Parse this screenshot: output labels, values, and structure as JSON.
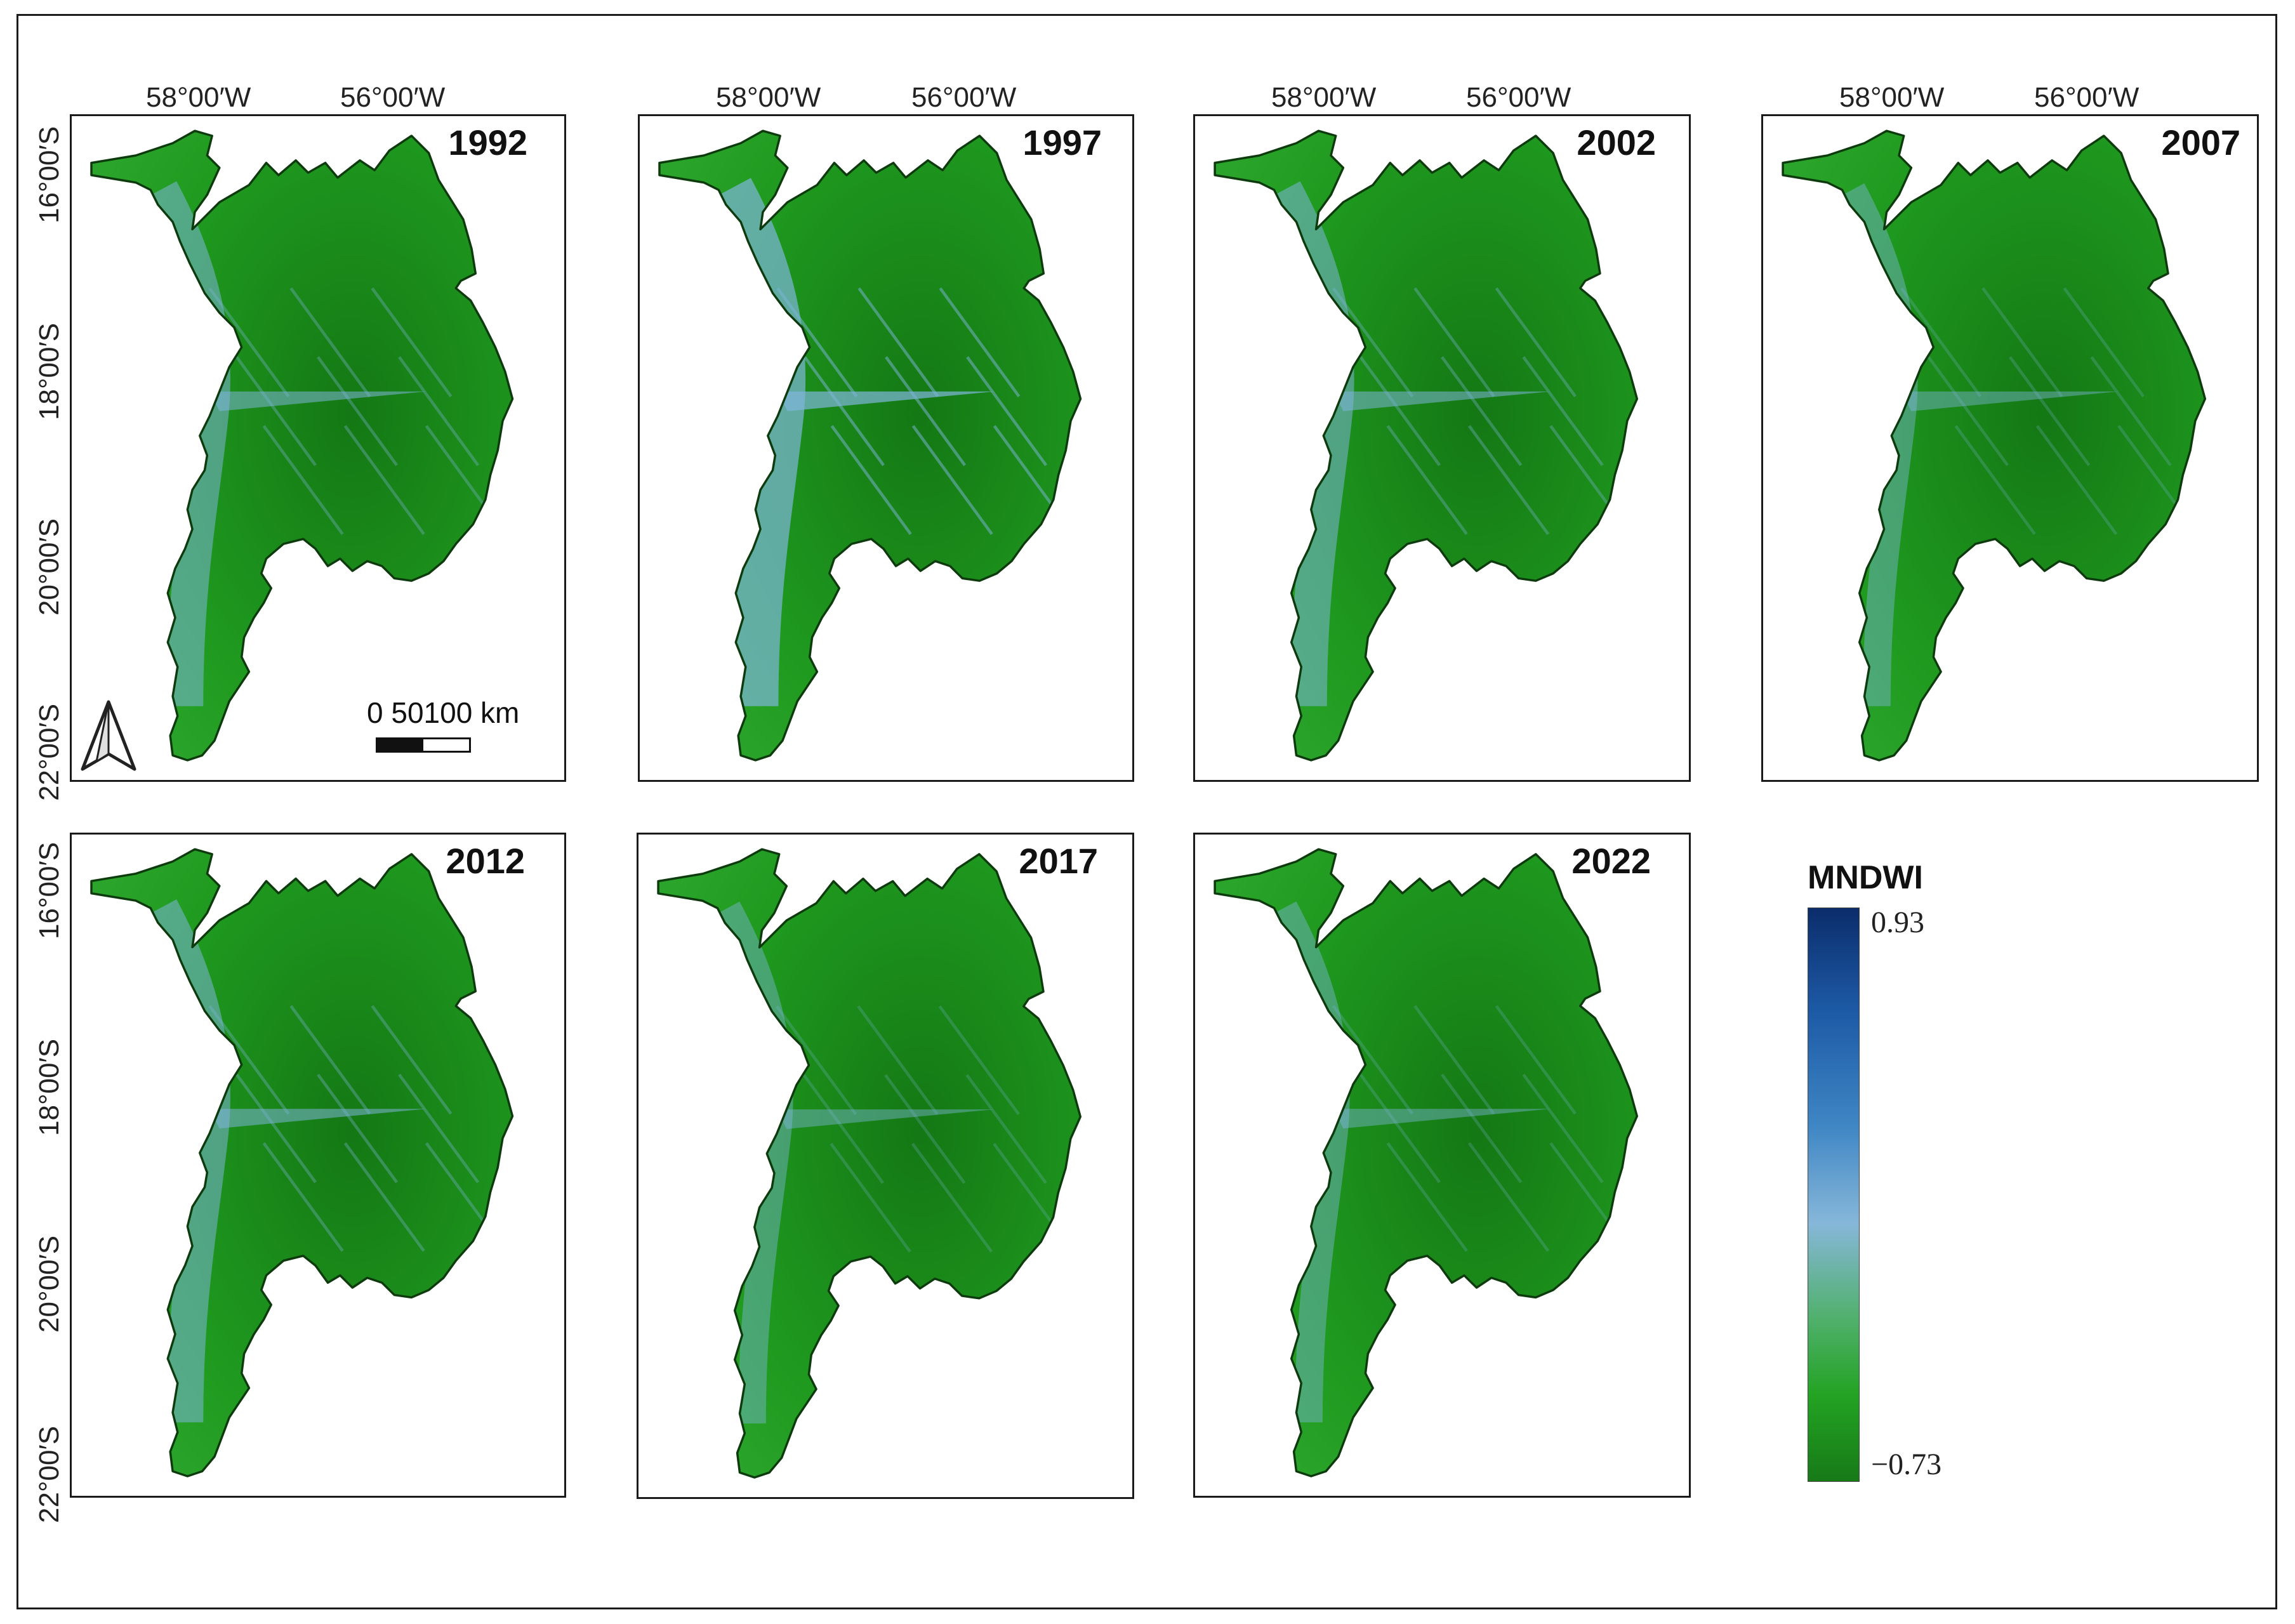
{
  "legend": {
    "title": "MNDWI",
    "max": "0.93",
    "min": "−0.73",
    "colors": [
      "#0b2d6b",
      "#1d5aa6",
      "#3f86c4",
      "#86b7d9",
      "#4fb06a",
      "#23a323",
      "#177a17"
    ]
  },
  "graticule": {
    "lon": [
      "58°00′W",
      "56°00′W"
    ],
    "lat": [
      "16°00′S",
      "18°00′S",
      "20°00′S",
      "22°00′S"
    ]
  },
  "scale_bar": {
    "label": "0   50100 km"
  },
  "panels": [
    {
      "year": "1992",
      "water_level": "medium"
    },
    {
      "year": "1997",
      "water_level": "high"
    },
    {
      "year": "2002",
      "water_level": "medium"
    },
    {
      "year": "2007",
      "water_level": "low"
    },
    {
      "year": "2012",
      "water_level": "medium"
    },
    {
      "year": "2017",
      "water_level": "low"
    },
    {
      "year": "2022",
      "water_level": "low"
    }
  ],
  "colors": {
    "land": "#1f9a1f",
    "land_dark": "#147814",
    "water_light": "#7fb6dc",
    "water_dark": "#1c4f98",
    "outline": "#0e3b0e"
  }
}
